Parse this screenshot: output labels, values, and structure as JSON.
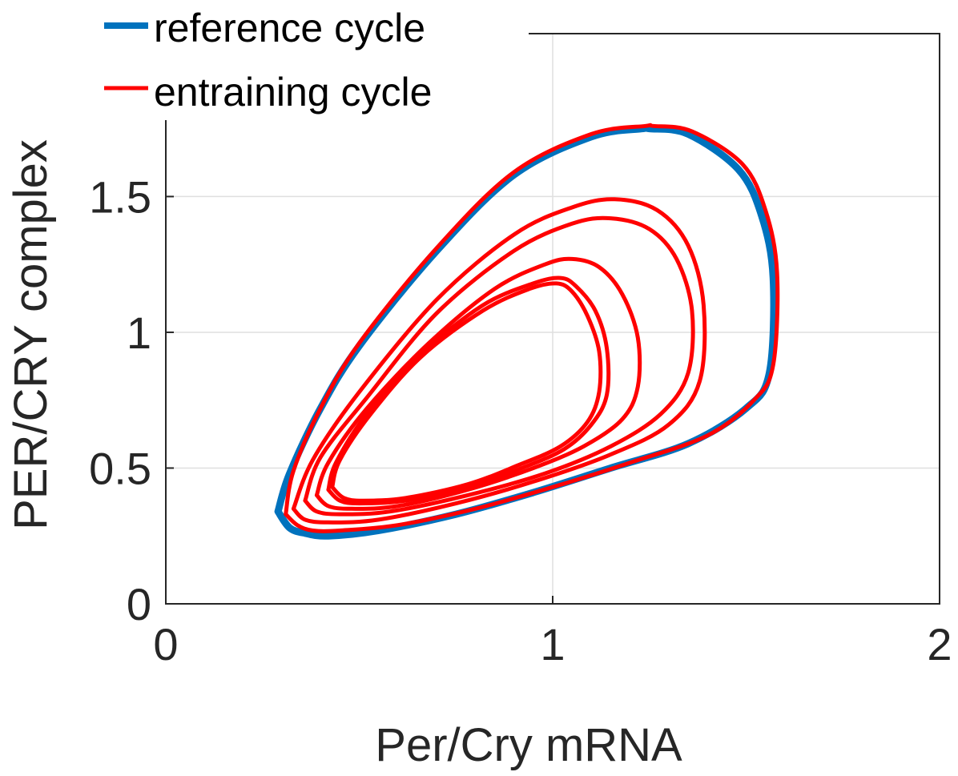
{
  "chart_data": {
    "type": "line",
    "xlabel": "Per/Cry mRNA",
    "ylabel": "PER/CRY complex",
    "xlim": [
      0,
      2
    ],
    "ylim": [
      0,
      2.1
    ],
    "x_ticks": [
      0,
      1,
      2
    ],
    "x_tick_labels": [
      "0",
      "1",
      "2"
    ],
    "y_ticks": [
      0,
      0.5,
      1,
      1.5
    ],
    "y_tick_labels": [
      "0",
      "0.5",
      "1",
      "1.5"
    ],
    "grid": true,
    "legend_placement": "top-left",
    "series": [
      {
        "name": "reference cycle",
        "color": "#0072BD",
        "x": [
          0.29,
          0.32,
          0.36,
          0.42,
          0.55,
          0.75,
          0.95,
          1.15,
          1.35,
          1.5,
          1.56,
          1.57,
          1.54,
          1.48,
          1.35,
          1.25,
          1.23,
          1.1,
          0.9,
          0.7,
          0.5,
          0.4,
          0.32,
          0.29
        ],
        "y": [
          0.34,
          0.28,
          0.26,
          0.25,
          0.27,
          0.33,
          0.41,
          0.5,
          0.59,
          0.72,
          0.85,
          1.2,
          1.43,
          1.6,
          1.73,
          1.75,
          1.75,
          1.72,
          1.58,
          1.3,
          0.95,
          0.72,
          0.48,
          0.34
        ]
      },
      {
        "name": "entraining cycle",
        "color": "#FF0000",
        "cycles": [
          {
            "x": [
              0.31,
              0.34,
              0.38,
              0.45,
              0.6,
              0.8,
              1.0,
              1.2,
              1.4,
              1.52,
              1.57,
              1.58,
              1.55,
              1.49,
              1.36,
              1.26,
              1.24,
              1.1,
              0.9,
              0.7,
              0.5,
              0.4,
              0.33,
              0.31
            ],
            "y": [
              0.33,
              0.29,
              0.27,
              0.27,
              0.29,
              0.35,
              0.43,
              0.52,
              0.62,
              0.75,
              0.88,
              1.22,
              1.45,
              1.62,
              1.74,
              1.76,
              1.76,
              1.73,
              1.59,
              1.31,
              0.96,
              0.72,
              0.49,
              0.33
            ]
          },
          {
            "x": [
              0.33,
              0.36,
              0.42,
              0.55,
              0.75,
              0.95,
              1.15,
              1.3,
              1.38,
              1.39,
              1.35,
              1.27,
              1.16,
              1.05,
              0.9,
              0.7,
              0.5,
              0.38,
              0.33
            ],
            "y": [
              0.35,
              0.31,
              0.3,
              0.31,
              0.37,
              0.45,
              0.55,
              0.66,
              0.82,
              1.1,
              1.32,
              1.45,
              1.49,
              1.46,
              1.36,
              1.12,
              0.78,
              0.53,
              0.35
            ]
          },
          {
            "x": [
              0.36,
              0.39,
              0.45,
              0.58,
              0.78,
              0.98,
              1.15,
              1.28,
              1.35,
              1.36,
              1.32,
              1.25,
              1.15,
              1.05,
              0.9,
              0.7,
              0.52,
              0.4,
              0.36
            ],
            "y": [
              0.38,
              0.34,
              0.33,
              0.34,
              0.4,
              0.48,
              0.58,
              0.7,
              0.85,
              1.08,
              1.27,
              1.38,
              1.42,
              1.4,
              1.3,
              1.07,
              0.76,
              0.54,
              0.38
            ]
          },
          {
            "x": [
              0.39,
              0.42,
              0.48,
              0.6,
              0.78,
              0.95,
              1.08,
              1.18,
              1.22,
              1.22,
              1.18,
              1.12,
              1.05,
              0.98,
              0.85,
              0.68,
              0.52,
              0.42,
              0.39
            ],
            "y": [
              0.4,
              0.36,
              0.35,
              0.36,
              0.42,
              0.5,
              0.58,
              0.68,
              0.8,
              0.98,
              1.14,
              1.24,
              1.27,
              1.25,
              1.16,
              0.96,
              0.72,
              0.52,
              0.4
            ]
          },
          {
            "x": [
              0.42,
              0.45,
              0.5,
              0.62,
              0.78,
              0.92,
              1.03,
              1.1,
              1.14,
              1.14,
              1.11,
              1.06,
              1.02,
              0.95,
              0.82,
              0.66,
              0.52,
              0.44,
              0.42
            ],
            "y": [
              0.42,
              0.38,
              0.37,
              0.38,
              0.43,
              0.5,
              0.57,
              0.66,
              0.77,
              0.94,
              1.08,
              1.17,
              1.2,
              1.18,
              1.1,
              0.92,
              0.7,
              0.52,
              0.42
            ]
          },
          {
            "x": [
              0.43,
              0.46,
              0.51,
              0.62,
              0.78,
              0.91,
              1.02,
              1.09,
              1.12,
              1.12,
              1.09,
              1.05,
              1.01,
              0.94,
              0.82,
              0.66,
              0.53,
              0.45,
              0.43
            ],
            "y": [
              0.43,
              0.39,
              0.38,
              0.39,
              0.44,
              0.51,
              0.58,
              0.67,
              0.78,
              0.93,
              1.06,
              1.15,
              1.18,
              1.16,
              1.08,
              0.91,
              0.7,
              0.53,
              0.43
            ]
          }
        ]
      }
    ]
  }
}
